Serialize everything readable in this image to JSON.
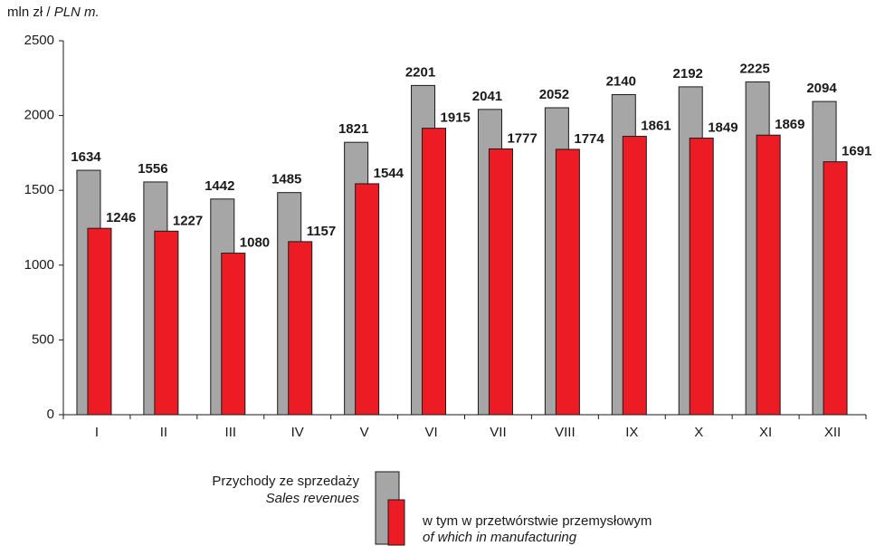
{
  "chart_data": {
    "type": "bar",
    "ylabel": "mln zł /",
    "ylabel_en": "PLN m.",
    "categories": [
      "I",
      "II",
      "III",
      "IV",
      "V",
      "VI",
      "VII",
      "VIII",
      "IX",
      "X",
      "XI",
      "XII"
    ],
    "series": [
      {
        "name": "Przychody ze sprzedaży",
        "name_en": "Sales revenues",
        "color": "#a6a6a6",
        "values": [
          1634,
          1556,
          1442,
          1485,
          1821,
          2201,
          2041,
          2052,
          2140,
          2192,
          2225,
          2094
        ]
      },
      {
        "name": "w tym w przetwórstwie przemysłowym",
        "name_en": "of which in manufacturing",
        "color": "#ed1c24",
        "values": [
          1246,
          1227,
          1080,
          1157,
          1544,
          1915,
          1777,
          1774,
          1861,
          1849,
          1869,
          1691
        ]
      }
    ],
    "ylim": [
      0,
      2500
    ],
    "yticks": [
      0,
      500,
      1000,
      1500,
      2000,
      2500
    ]
  }
}
